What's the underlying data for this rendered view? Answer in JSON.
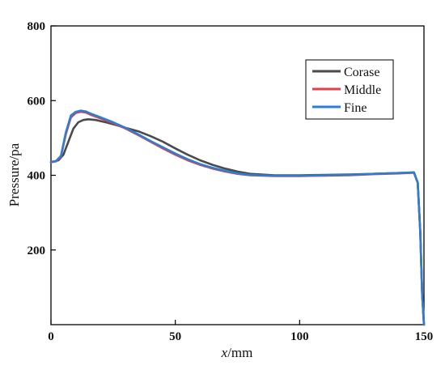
{
  "chart_data": {
    "type": "line",
    "title": "",
    "xlabel": {
      "italic": "x",
      "rest": "/mm"
    },
    "ylabel": "Pressure/pa",
    "xlim": [
      0,
      150
    ],
    "ylim": [
      0,
      800
    ],
    "xticks": [
      0,
      50,
      100,
      150
    ],
    "yticks": [
      200,
      400,
      600,
      800
    ],
    "grid": false,
    "legend_position": "top-right",
    "series": [
      {
        "name": "Corase",
        "color": "#4a4a4a",
        "x": [
          0,
          3,
          5,
          7,
          9,
          11,
          13,
          15,
          18,
          22,
          26,
          30,
          35,
          40,
          45,
          50,
          55,
          60,
          65,
          70,
          75,
          80,
          90,
          100,
          110,
          120,
          130,
          140,
          146,
          147.5,
          148.5,
          149.3,
          150
        ],
        "y": [
          435,
          440,
          455,
          490,
          525,
          542,
          548,
          550,
          548,
          542,
          535,
          527,
          518,
          505,
          490,
          472,
          455,
          440,
          428,
          418,
          410,
          404,
          400,
          400,
          401,
          402,
          404,
          406,
          407,
          380,
          250,
          80,
          0
        ]
      },
      {
        "name": "Middle",
        "color": "#e0404a",
        "x": [
          0,
          2,
          4,
          6,
          8,
          10,
          12,
          14,
          16,
          20,
          25,
          30,
          35,
          40,
          45,
          50,
          55,
          60,
          65,
          70,
          75,
          80,
          90,
          100,
          110,
          120,
          130,
          140,
          146,
          147.5,
          148.5,
          149.3,
          150
        ],
        "y": [
          435,
          437,
          450,
          510,
          555,
          567,
          570,
          568,
          562,
          552,
          540,
          525,
          508,
          490,
          472,
          455,
          440,
          428,
          418,
          410,
          404,
          400,
          398,
          398,
          399,
          400,
          403,
          405,
          407,
          380,
          250,
          80,
          0
        ]
      },
      {
        "name": "Fine",
        "color": "#2a7fd4",
        "x": [
          0,
          2,
          4,
          6,
          8,
          10,
          12,
          14,
          16,
          20,
          25,
          30,
          35,
          40,
          45,
          50,
          55,
          60,
          65,
          70,
          75,
          80,
          90,
          100,
          110,
          120,
          130,
          140,
          146,
          147.5,
          148.5,
          149.3,
          150
        ],
        "y": [
          436,
          438,
          452,
          515,
          560,
          570,
          573,
          571,
          565,
          555,
          542,
          527,
          510,
          492,
          475,
          458,
          443,
          430,
          420,
          412,
          405,
          401,
          399,
          399,
          400,
          401,
          404,
          406,
          408,
          380,
          250,
          80,
          0
        ]
      }
    ]
  }
}
